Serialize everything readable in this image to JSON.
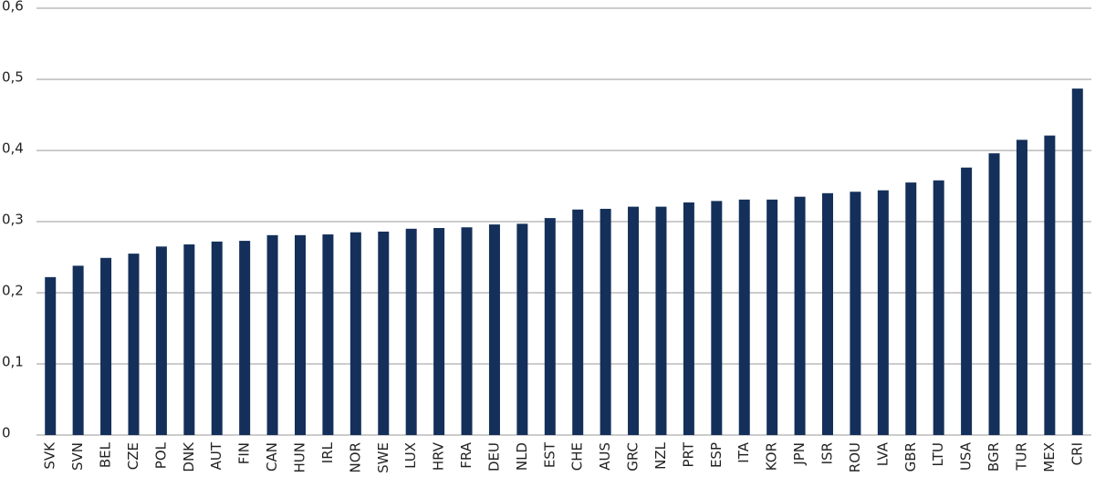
{
  "chart_data": {
    "type": "bar",
    "categories": [
      "SVK",
      "SVN",
      "BEL",
      "CZE",
      "POL",
      "DNK",
      "AUT",
      "FIN",
      "CAN",
      "HUN",
      "IRL",
      "NOR",
      "SWE",
      "LUX",
      "HRV",
      "FRA",
      "DEU",
      "NLD",
      "EST",
      "CHE",
      "AUS",
      "GRC",
      "NZL",
      "PRT",
      "ESP",
      "ITA",
      "KOR",
      "JPN",
      "ISR",
      "ROU",
      "LVA",
      "GBR",
      "LTU",
      "USA",
      "BGR",
      "TUR",
      "MEX",
      "CRI"
    ],
    "values": [
      0.222,
      0.238,
      0.249,
      0.255,
      0.265,
      0.268,
      0.272,
      0.273,
      0.281,
      0.281,
      0.282,
      0.285,
      0.286,
      0.29,
      0.291,
      0.292,
      0.296,
      0.297,
      0.305,
      0.317,
      0.318,
      0.321,
      0.321,
      0.327,
      0.329,
      0.331,
      0.331,
      0.335,
      0.34,
      0.342,
      0.344,
      0.355,
      0.358,
      0.376,
      0.396,
      0.415,
      0.421,
      0.487
    ],
    "color": "#14305a",
    "ylim": [
      0,
      0.6
    ],
    "yticks": [
      0,
      {
        "value": 0.1,
        "label": "0,1"
      },
      {
        "value": 0.2,
        "label": "0,2"
      },
      {
        "value": 0.3,
        "label": "0,3"
      },
      {
        "value": 0.4,
        "label": "0,4"
      },
      {
        "value": 0.5,
        "label": "0,5"
      },
      {
        "value": 0.6,
        "label": "0,6"
      }
    ],
    "grid": true
  }
}
